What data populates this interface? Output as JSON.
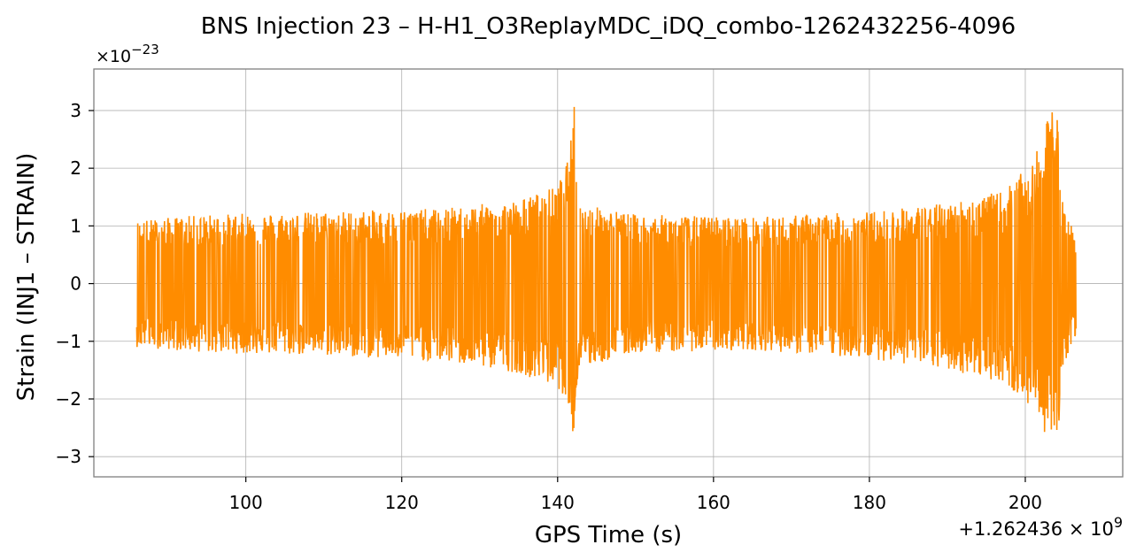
{
  "chart_data": {
    "type": "line",
    "title": "BNS Injection 23 – H-H1_O3ReplayMDC_iDQ_combo-1262432256-4096",
    "xlabel": "GPS Time (s)",
    "ylabel": "Strain (INJ1 – STRAIN)",
    "y_scale_label": "×10−23",
    "x_offset_label": "+1.262436 × 109",
    "y_unit_multiplier": 1e-23,
    "x_offset": 1262436000,
    "xlim": [
      80.5,
      212.5
    ],
    "ylim": [
      -3.35,
      3.72
    ],
    "x_ticks": [
      100,
      120,
      140,
      160,
      180,
      200
    ],
    "x_tick_labels": [
      "100",
      "120",
      "140",
      "160",
      "180",
      "200"
    ],
    "y_ticks": [
      -3,
      -2,
      -1,
      0,
      1,
      2,
      3
    ],
    "y_tick_labels": [
      "−3",
      "−2",
      "−1",
      "0",
      "1",
      "2",
      "3"
    ],
    "grid": true,
    "line_color": "#ff8c00",
    "series": [
      {
        "x_range": [
          86.0,
          206.5
        ],
        "envelope_upper": [
          [
            86,
            1.1
          ],
          [
            95,
            1.2
          ],
          [
            110,
            1.25
          ],
          [
            125,
            1.3
          ],
          [
            135,
            1.45
          ],
          [
            140,
            1.7
          ],
          [
            141.5,
            2.2
          ],
          [
            142.3,
            3.4
          ],
          [
            142.6,
            1.4
          ],
          [
            150,
            1.2
          ],
          [
            165,
            1.15
          ],
          [
            180,
            1.25
          ],
          [
            190,
            1.4
          ],
          [
            197,
            1.6
          ],
          [
            201,
            2.1
          ],
          [
            204.2,
            3.37
          ],
          [
            204.6,
            1.5
          ],
          [
            206.5,
            0.8
          ]
        ],
        "envelope_lower": [
          [
            86,
            -1.1
          ],
          [
            95,
            -1.2
          ],
          [
            110,
            -1.25
          ],
          [
            125,
            -1.35
          ],
          [
            135,
            -1.55
          ],
          [
            140,
            -1.8
          ],
          [
            141.5,
            -2.1
          ],
          [
            142.3,
            -3.0
          ],
          [
            142.6,
            -1.5
          ],
          [
            150,
            -1.2
          ],
          [
            165,
            -1.15
          ],
          [
            180,
            -1.3
          ],
          [
            190,
            -1.5
          ],
          [
            197,
            -1.7
          ],
          [
            201,
            -2.2
          ],
          [
            204.2,
            -3.02
          ],
          [
            204.6,
            -1.5
          ],
          [
            206.5,
            -0.9
          ]
        ]
      }
    ]
  }
}
